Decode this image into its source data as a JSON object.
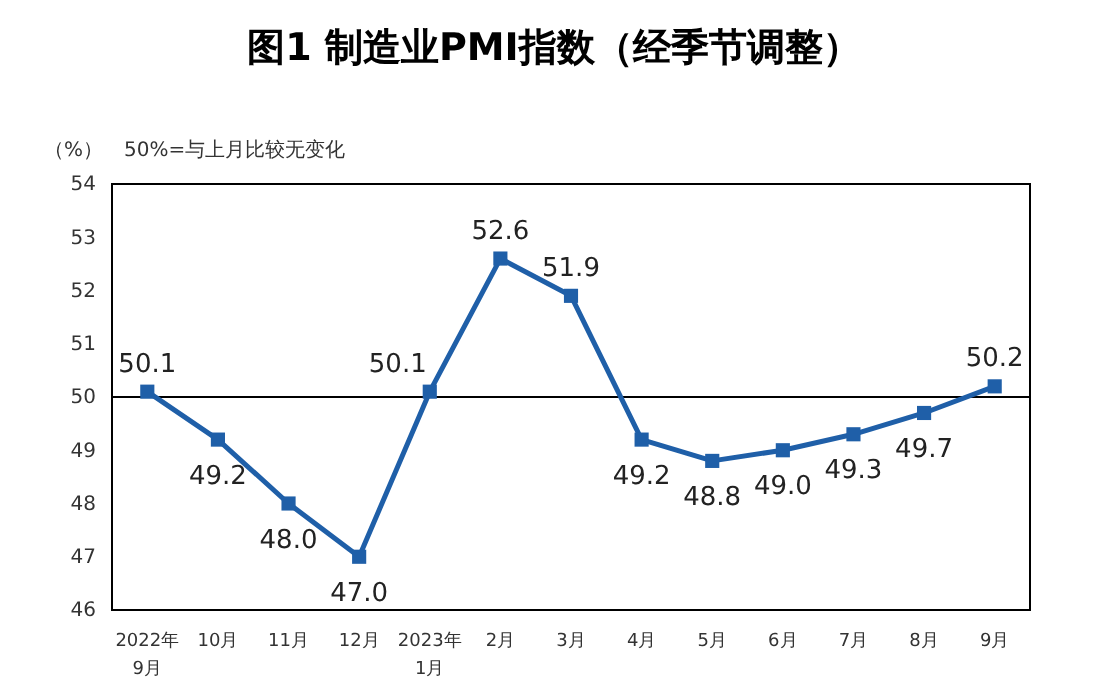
{
  "chart_data": {
    "type": "line",
    "title": "图1  制造业PMI指数（经季节调整）",
    "ylabel": "（%）",
    "annotations": [
      "50%=与上月比较无变化"
    ],
    "categories": [
      "2022年\n9月",
      "10月",
      "11月",
      "12月",
      "2023年\n1月",
      "2月",
      "3月",
      "4月",
      "5月",
      "6月",
      "7月",
      "8月",
      "9月"
    ],
    "series": [
      {
        "color": "#1f5fa8",
        "values": [
          50.1,
          49.2,
          48.0,
          47.0,
          50.1,
          52.6,
          51.9,
          49.2,
          48.8,
          49.0,
          49.3,
          49.7,
          50.2
        ],
        "value_labels": [
          "50.1",
          "49.2",
          "48.0",
          "47.0",
          "50.1",
          "52.6",
          "51.9",
          "49.2",
          "48.8",
          "49.0",
          "49.3",
          "49.7",
          "50.2"
        ]
      }
    ],
    "ylim": [
      46,
      54
    ],
    "yticks": [
      46,
      47,
      48,
      49,
      50,
      51,
      52,
      53,
      54
    ],
    "ref_lines": [
      {
        "axis": "y",
        "value": 50,
        "color": "#000000"
      }
    ],
    "marker": "square",
    "grid": false
  }
}
